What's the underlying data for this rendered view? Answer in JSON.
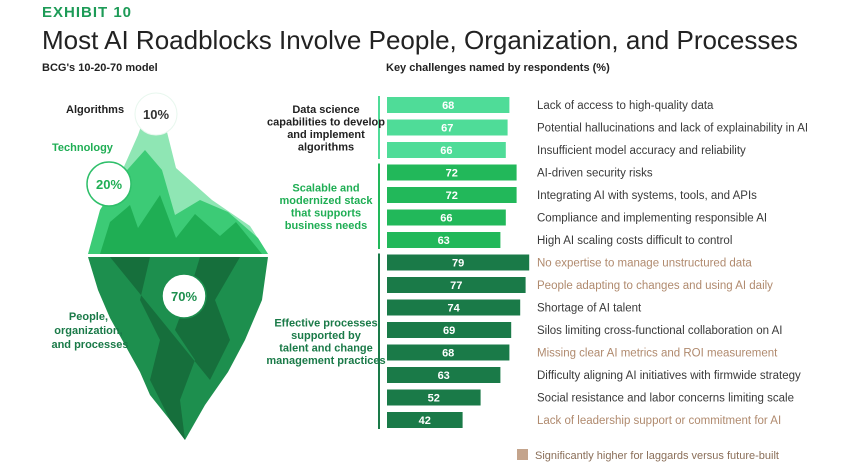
{
  "header": {
    "exhibit": "EXHIBIT 10",
    "title": "Most AI Roadblocks Involve People, Organization, and Processes",
    "left_subtitle": "BCG's 10-20-70 model",
    "right_subtitle": "Key challenges named by respondents (%)"
  },
  "iceberg": {
    "algorithms_label": "Algorithms",
    "algorithms_pct": "10%",
    "technology_label": "Technology",
    "technology_pct": "20%",
    "people_label": [
      "People,",
      "organization,",
      "and processes"
    ],
    "people_pct": "70%"
  },
  "colors": {
    "light": "#4fdc98",
    "mid": "#22b85a",
    "dark": "#1a7a48",
    "highlight_text": "#b08a6e",
    "normal_text": "#3a3a3a",
    "legend_swatch": "#c4a48c"
  },
  "chart_data": {
    "type": "bar",
    "orientation": "horizontal",
    "unit": "%",
    "groups": [
      {
        "label": [
          "Data science",
          "capabilities to develop",
          "and implement",
          "algorithms"
        ],
        "shade": "light",
        "items": [
          {
            "label": "Lack of access to high-quality data",
            "value": 68,
            "highlight": false
          },
          {
            "label": "Potential hallucinations and lack of explainability in AI",
            "value": 67,
            "highlight": false
          },
          {
            "label": "Insufficient model accuracy and reliability",
            "value": 66,
            "highlight": false
          }
        ]
      },
      {
        "label": [
          "Scalable and",
          "modernized stack",
          "that supports",
          "business needs"
        ],
        "shade": "mid",
        "items": [
          {
            "label": "AI-driven security risks",
            "value": 72,
            "highlight": false
          },
          {
            "label": "Integrating AI with systems, tools, and APIs",
            "value": 72,
            "highlight": false
          },
          {
            "label": "Compliance and implementing responsible AI",
            "value": 66,
            "highlight": false
          },
          {
            "label": "High AI scaling costs difficult to control",
            "value": 63,
            "highlight": false
          }
        ]
      },
      {
        "label": [
          "Effective processes",
          "supported by",
          "talent and change",
          "management practices"
        ],
        "shade": "dark",
        "items": [
          {
            "label": "No expertise to manage unstructured data",
            "value": 79,
            "highlight": true
          },
          {
            "label": "People adapting to changes and using AI daily",
            "value": 77,
            "highlight": true
          },
          {
            "label": "Shortage of AI talent",
            "value": 74,
            "highlight": false
          },
          {
            "label": "Silos limiting cross-functional collaboration on AI",
            "value": 69,
            "highlight": false
          },
          {
            "label": "Missing clear AI metrics and ROI measurement",
            "value": 68,
            "highlight": true
          },
          {
            "label": "Difficulty aligning AI initiatives with firmwide strategy",
            "value": 63,
            "highlight": false
          },
          {
            "label": "Social resistance and labor concerns limiting scale",
            "value": 52,
            "highlight": false
          },
          {
            "label": "Lack of leadership support or commitment for AI",
            "value": 42,
            "highlight": true
          }
        ]
      }
    ],
    "legend": "Significantly higher for laggards versus future-built"
  }
}
